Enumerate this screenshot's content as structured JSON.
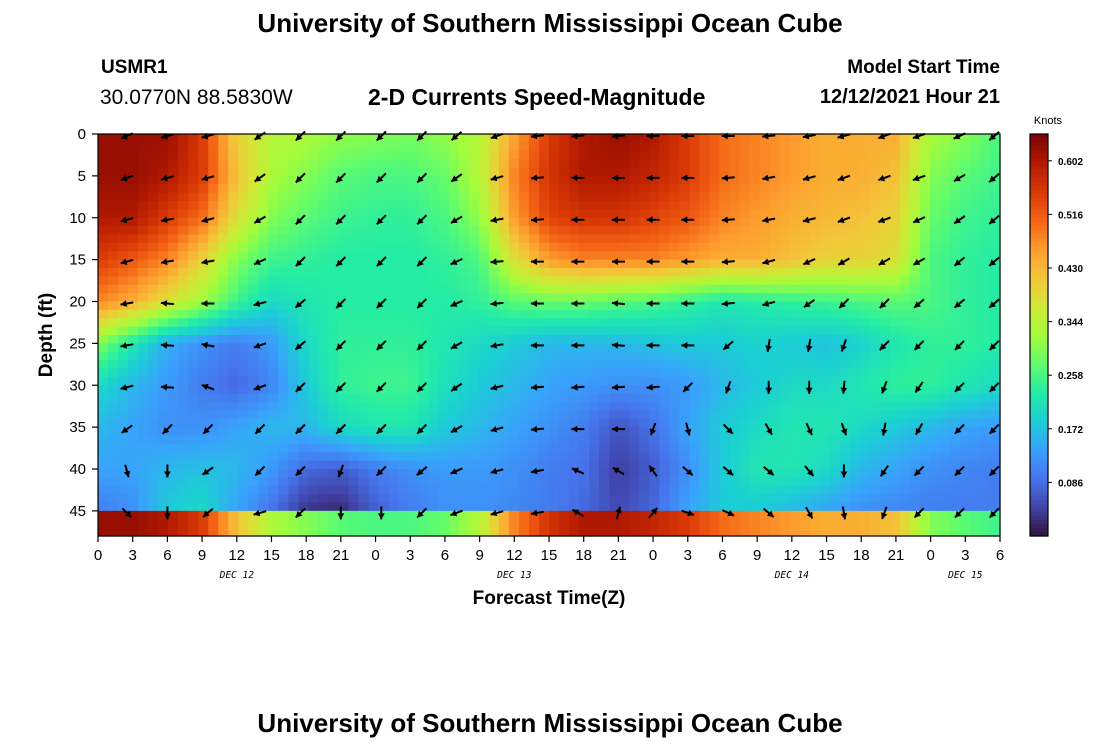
{
  "page": {
    "title": "University of Southern Mississippi Ocean Cube",
    "footer_title": "University of Southern Mississippi Ocean Cube",
    "station": "USMR1",
    "coordinates": "30.0770N  88.5830W",
    "subtitle": "2-D Currents Speed-Magnitude",
    "model_start_label": "Model Start Time",
    "model_start_value": "12/12/2021 Hour 21"
  },
  "chart_data": {
    "type": "heatmap",
    "title": "2-D Currents Speed-Magnitude",
    "xlabel": "Forecast Time(Z)",
    "ylabel": "Depth (ft)",
    "x_ticks": [
      "0",
      "3",
      "6",
      "9",
      "12",
      "15",
      "18",
      "21",
      "0",
      "3",
      "6",
      "9",
      "12",
      "15",
      "18",
      "21",
      "0",
      "3",
      "6",
      "9",
      "12",
      "15",
      "18",
      "21",
      "0",
      "3",
      "6"
    ],
    "day_labels": [
      "DEC 12",
      "DEC 13",
      "DEC 14",
      "DEC 15"
    ],
    "y_ticks": [
      "0",
      "5",
      "10",
      "15",
      "20",
      "25",
      "30",
      "35",
      "40",
      "45"
    ],
    "ylim": [
      0,
      48
    ],
    "x_hours_range": [
      0,
      78
    ],
    "colorbar": {
      "label": "Knots",
      "ticks": [
        "0.602",
        "0.516",
        "0.430",
        "0.344",
        "0.258",
        "0.172",
        "0.086"
      ],
      "range": [
        0.0,
        0.645
      ]
    },
    "colormap": [
      "#30123b",
      "#4145ab",
      "#4675ed",
      "#39a2fc",
      "#1bcfd4",
      "#24eca6",
      "#61fc6c",
      "#a4fc3b",
      "#d1e834",
      "#f3c63a",
      "#fe9b2d",
      "#f36315",
      "#d93806",
      "#b11901",
      "#7a0403"
    ],
    "depths": [
      0,
      5,
      10,
      15,
      20,
      25,
      30,
      35,
      40,
      45
    ],
    "times_hours": [
      0,
      3,
      6,
      9,
      12,
      15,
      18,
      21,
      24,
      27,
      30,
      33,
      36,
      39,
      42,
      45,
      48,
      51,
      54,
      57,
      60,
      63,
      66,
      69,
      72,
      75,
      78
    ],
    "speed_knots": [
      [
        0.62,
        0.62,
        0.62,
        0.55,
        0.4,
        0.34,
        0.33,
        0.31,
        0.3,
        0.29,
        0.31,
        0.34,
        0.45,
        0.55,
        0.6,
        0.62,
        0.6,
        0.55,
        0.5,
        0.48,
        0.46,
        0.44,
        0.44,
        0.44,
        0.33,
        0.3,
        0.26
      ],
      [
        0.62,
        0.62,
        0.6,
        0.55,
        0.42,
        0.33,
        0.3,
        0.27,
        0.26,
        0.26,
        0.28,
        0.34,
        0.48,
        0.56,
        0.6,
        0.6,
        0.58,
        0.55,
        0.5,
        0.48,
        0.46,
        0.44,
        0.44,
        0.42,
        0.3,
        0.27,
        0.25
      ],
      [
        0.6,
        0.6,
        0.55,
        0.5,
        0.38,
        0.3,
        0.27,
        0.25,
        0.24,
        0.24,
        0.26,
        0.31,
        0.46,
        0.54,
        0.56,
        0.56,
        0.54,
        0.52,
        0.48,
        0.46,
        0.44,
        0.43,
        0.42,
        0.4,
        0.28,
        0.25,
        0.24
      ],
      [
        0.55,
        0.52,
        0.48,
        0.4,
        0.3,
        0.25,
        0.24,
        0.23,
        0.23,
        0.23,
        0.24,
        0.26,
        0.38,
        0.46,
        0.48,
        0.48,
        0.48,
        0.46,
        0.44,
        0.44,
        0.42,
        0.4,
        0.4,
        0.38,
        0.26,
        0.24,
        0.23
      ],
      [
        0.48,
        0.44,
        0.38,
        0.32,
        0.25,
        0.2,
        0.22,
        0.23,
        0.23,
        0.23,
        0.23,
        0.24,
        0.27,
        0.28,
        0.28,
        0.27,
        0.26,
        0.24,
        0.22,
        0.23,
        0.24,
        0.25,
        0.26,
        0.27,
        0.26,
        0.24,
        0.23
      ],
      [
        0.3,
        0.22,
        0.15,
        0.12,
        0.1,
        0.13,
        0.2,
        0.24,
        0.24,
        0.24,
        0.22,
        0.2,
        0.18,
        0.16,
        0.16,
        0.16,
        0.17,
        0.18,
        0.18,
        0.19,
        0.18,
        0.17,
        0.19,
        0.22,
        0.24,
        0.24,
        0.23
      ],
      [
        0.2,
        0.16,
        0.13,
        0.1,
        0.08,
        0.11,
        0.18,
        0.24,
        0.25,
        0.25,
        0.21,
        0.18,
        0.16,
        0.14,
        0.13,
        0.12,
        0.12,
        0.13,
        0.16,
        0.18,
        0.2,
        0.2,
        0.22,
        0.24,
        0.24,
        0.22,
        0.2
      ],
      [
        0.16,
        0.14,
        0.12,
        0.12,
        0.14,
        0.16,
        0.16,
        0.2,
        0.22,
        0.22,
        0.18,
        0.16,
        0.14,
        0.12,
        0.1,
        0.06,
        0.09,
        0.14,
        0.18,
        0.2,
        0.22,
        0.22,
        0.2,
        0.18,
        0.16,
        0.14,
        0.13
      ],
      [
        0.14,
        0.14,
        0.16,
        0.17,
        0.16,
        0.13,
        0.08,
        0.07,
        0.1,
        0.12,
        0.13,
        0.13,
        0.12,
        0.1,
        0.09,
        0.04,
        0.07,
        0.12,
        0.18,
        0.22,
        0.22,
        0.2,
        0.16,
        0.14,
        0.12,
        0.11,
        0.1
      ],
      [
        0.1,
        0.12,
        0.18,
        0.2,
        0.14,
        0.09,
        0.03,
        0.02,
        0.07,
        0.1,
        0.12,
        0.12,
        0.11,
        0.1,
        0.08,
        0.05,
        0.08,
        0.14,
        0.18,
        0.18,
        0.16,
        0.14,
        0.12,
        0.11,
        0.1,
        0.1,
        0.1
      ]
    ],
    "direction_deg": [
      [
        255,
        260,
        255,
        255,
        245,
        225,
        225,
        225,
        225,
        230,
        250,
        260,
        265,
        265,
        270,
        270,
        265,
        260,
        255,
        250,
        250,
        250,
        245,
        240,
        235,
        230,
        225
      ],
      [
        250,
        255,
        255,
        255,
        245,
        225,
        225,
        225,
        225,
        230,
        250,
        260,
        265,
        270,
        270,
        270,
        265,
        260,
        255,
        250,
        250,
        250,
        245,
        240,
        235,
        230,
        225
      ],
      [
        250,
        255,
        255,
        255,
        245,
        225,
        225,
        225,
        225,
        230,
        250,
        260,
        265,
        270,
        270,
        270,
        265,
        260,
        255,
        250,
        250,
        250,
        245,
        240,
        235,
        230,
        225
      ],
      [
        250,
        255,
        255,
        260,
        250,
        230,
        225,
        225,
        225,
        235,
        255,
        265,
        270,
        275,
        275,
        270,
        265,
        255,
        245,
        240,
        240,
        240,
        240,
        235,
        230,
        230,
        225
      ],
      [
        250,
        255,
        265,
        270,
        260,
        240,
        230,
        225,
        225,
        240,
        255,
        265,
        270,
        275,
        275,
        270,
        265,
        255,
        240,
        225,
        225,
        230,
        230,
        230,
        230,
        230,
        225
      ],
      [
        245,
        255,
        265,
        280,
        275,
        235,
        225,
        225,
        225,
        235,
        250,
        260,
        270,
        275,
        275,
        270,
        265,
        225,
        200,
        190,
        210,
        225,
        225,
        225,
        225,
        225,
        225
      ],
      [
        240,
        250,
        275,
        290,
        290,
        235,
        220,
        225,
        225,
        225,
        240,
        250,
        260,
        265,
        265,
        265,
        240,
        200,
        185,
        180,
        185,
        200,
        210,
        220,
        225,
        225,
        225
      ],
      [
        225,
        235,
        235,
        225,
        235,
        225,
        225,
        225,
        230,
        230,
        240,
        250,
        260,
        265,
        270,
        200,
        165,
        135,
        145,
        155,
        155,
        170,
        205,
        215,
        225,
        225,
        225
      ],
      [
        165,
        180,
        225,
        235,
        225,
        225,
        200,
        190,
        225,
        235,
        245,
        250,
        255,
        260,
        300,
        330,
        325,
        125,
        125,
        125,
        135,
        180,
        215,
        225,
        225,
        225,
        225
      ],
      [
        135,
        150,
        180,
        225,
        255,
        210,
        180,
        180,
        225,
        240,
        250,
        255,
        260,
        300,
        330,
        15,
        40,
        110,
        110,
        120,
        140,
        155,
        180,
        205,
        220,
        225,
        225
      ]
    ],
    "vector_hours": [
      2.5,
      6,
      9.5,
      14,
      17.5,
      21,
      24.5,
      28,
      31,
      34.5,
      38,
      41.5,
      45,
      48,
      51,
      54.5,
      58,
      61.5,
      64.5,
      68,
      71,
      74.5,
      77.5
    ],
    "vector_direction_deg": [
      [
        245,
        255,
        255,
        235,
        225,
        225,
        225,
        225,
        230,
        250,
        265,
        265,
        265,
        270,
        270,
        270,
        265,
        260,
        255,
        250,
        250,
        245,
        230
      ],
      [
        250,
        255,
        255,
        235,
        225,
        225,
        225,
        225,
        235,
        255,
        265,
        270,
        270,
        270,
        270,
        265,
        260,
        255,
        250,
        250,
        250,
        240,
        230
      ],
      [
        255,
        260,
        255,
        240,
        225,
        225,
        225,
        225,
        240,
        260,
        265,
        270,
        270,
        270,
        270,
        265,
        260,
        255,
        250,
        250,
        245,
        235,
        230
      ],
      [
        255,
        260,
        260,
        245,
        225,
        225,
        225,
        225,
        245,
        265,
        270,
        270,
        270,
        270,
        270,
        265,
        255,
        245,
        240,
        240,
        240,
        230,
        230
      ],
      [
        260,
        275,
        270,
        255,
        230,
        225,
        225,
        225,
        245,
        265,
        270,
        270,
        275,
        270,
        270,
        265,
        255,
        235,
        225,
        225,
        230,
        230,
        230
      ],
      [
        260,
        275,
        280,
        250,
        230,
        225,
        225,
        225,
        240,
        260,
        270,
        270,
        275,
        270,
        270,
        230,
        190,
        190,
        200,
        225,
        225,
        225,
        225
      ],
      [
        255,
        275,
        290,
        250,
        225,
        225,
        225,
        225,
        235,
        255,
        265,
        265,
        265,
        265,
        225,
        200,
        180,
        180,
        185,
        200,
        215,
        225,
        225
      ],
      [
        235,
        225,
        225,
        225,
        225,
        225,
        225,
        225,
        240,
        255,
        265,
        270,
        270,
        200,
        165,
        135,
        150,
        155,
        160,
        190,
        210,
        225,
        225
      ],
      [
        165,
        180,
        235,
        225,
        225,
        200,
        225,
        230,
        245,
        255,
        260,
        295,
        300,
        325,
        130,
        130,
        130,
        140,
        180,
        215,
        225,
        225,
        225
      ],
      [
        135,
        180,
        230,
        255,
        225,
        180,
        180,
        225,
        250,
        255,
        260,
        300,
        15,
        40,
        110,
        115,
        130,
        150,
        170,
        200,
        225,
        225,
        225
      ]
    ],
    "grid": false,
    "legend": "colorbar-right"
  }
}
